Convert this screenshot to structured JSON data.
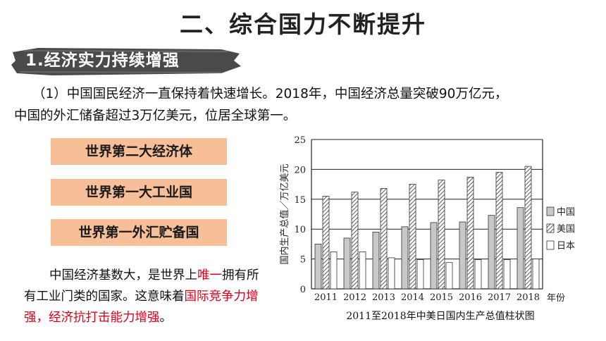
{
  "slide": {
    "title": "二、综合国力不断提升",
    "section": "1.经济实力持续增强",
    "paragraph_line1": "（1）中国国民经济一直保持着快速增长。2018年，中国经济总量突破90万亿元，",
    "paragraph_line2": "中国的外汇储备超过3万亿美元，位居全球第一。",
    "boxes": [
      "世界第二大经济体",
      "世界第一大工业国",
      "世界第一外汇贮备国"
    ],
    "note": {
      "part1": "中国经济基数大，是世界上",
      "red1": "唯一",
      "part2": "拥有所有工业门类的国家。这意味着",
      "red2": "国际竞争力增强，经济抗打击能力增强",
      "part3": "。"
    },
    "colors": {
      "box": "#f7bf97",
      "highlight": "#e0001a",
      "brush": "#4a4a4a"
    }
  },
  "chart_data": {
    "type": "bar",
    "caption": "2011至2018年中美日国内生产总值柱状图",
    "ylabel": "国内生产总值／万亿美元",
    "xlabel": "年份",
    "categories": [
      "2011",
      "2012",
      "2013",
      "2014",
      "2015",
      "2016",
      "2017",
      "2018"
    ],
    "ylim": [
      0,
      25
    ],
    "yticks": [
      "0",
      "5",
      "10",
      "15",
      "20",
      "25"
    ],
    "grid": true,
    "legend_position": "right",
    "series": [
      {
        "name": "中国",
        "pattern": "solid-gray",
        "values": [
          7.5,
          8.5,
          9.5,
          10.4,
          11.1,
          11.2,
          12.3,
          13.6
        ]
      },
      {
        "name": "美国",
        "pattern": "hatched",
        "values": [
          15.5,
          16.2,
          16.8,
          17.5,
          18.2,
          18.7,
          19.5,
          20.5
        ]
      },
      {
        "name": "日本",
        "pattern": "white",
        "values": [
          6.2,
          6.2,
          5.2,
          4.9,
          4.4,
          4.9,
          4.9,
          5.0
        ]
      }
    ]
  }
}
